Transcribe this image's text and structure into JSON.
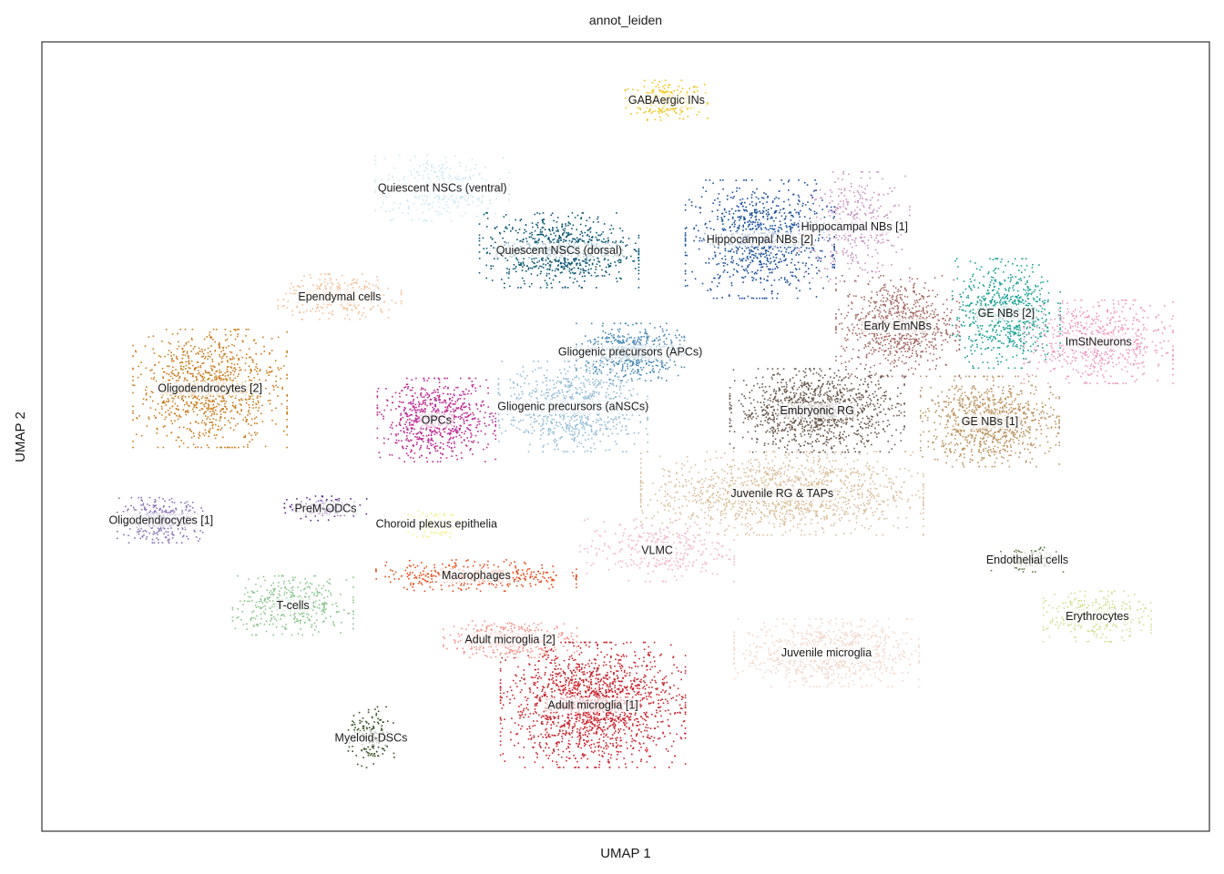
{
  "chart_data": {
    "type": "scatter",
    "title": "annot_leiden",
    "xlabel": "UMAP 1",
    "ylabel": "UMAP 2",
    "xlim": [
      0,
      100
    ],
    "ylim": [
      0,
      100
    ],
    "ticks": "none",
    "grid": false,
    "legend": "labels on data",
    "clusters": [
      {
        "name": "GABAergic INs",
        "color": "#f2c418",
        "center": [
          53.5,
          92.6
        ],
        "spread": [
          3.2,
          2.3
        ],
        "n": 260
      },
      {
        "name": "Hippocampal NBs [1]",
        "color": "#c895c0",
        "center": [
          69.6,
          76.6
        ],
        "spread": [
          4.3,
          6.3
        ],
        "n": 380
      },
      {
        "name": "Hippocampal NBs [2]",
        "color": "#1b4f99",
        "center": [
          61.5,
          75.0
        ],
        "spread": [
          5.8,
          6.8
        ],
        "n": 900
      },
      {
        "name": "Quiescent NSCs (ventral)",
        "color": "#cbe8f4",
        "center": [
          34.3,
          81.5
        ],
        "spread": [
          5.2,
          3.8
        ],
        "n": 380
      },
      {
        "name": "Quiescent NSCs (dorsal)",
        "color": "#0a5673",
        "center": [
          44.3,
          73.6
        ],
        "spread": [
          6.2,
          4.3
        ],
        "n": 800
      },
      {
        "name": "Ependymal cells",
        "color": "#f6bf93",
        "center": [
          25.5,
          67.7
        ],
        "spread": [
          4.8,
          2.6
        ],
        "n": 320
      },
      {
        "name": "Oligodendrocytes [2]",
        "color": "#cb7d1e",
        "center": [
          14.4,
          56.1
        ],
        "spread": [
          6.0,
          6.8
        ],
        "n": 1050
      },
      {
        "name": "Oligodendrocytes [1]",
        "color": "#8872b3",
        "center": [
          10.2,
          39.4
        ],
        "spread": [
          3.4,
          2.6
        ],
        "n": 360
      },
      {
        "name": "PreM-ODCs",
        "color": "#5a2a8c",
        "center": [
          24.3,
          40.9
        ],
        "spread": [
          3.2,
          1.4
        ],
        "n": 150
      },
      {
        "name": "OPCs",
        "color": "#bd2b92",
        "center": [
          33.8,
          52.1
        ],
        "spread": [
          4.6,
          4.8
        ],
        "n": 750
      },
      {
        "name": "Gliogenic precursors (APCs)",
        "color": "#4a89b3",
        "center": [
          50.4,
          60.7
        ],
        "spread": [
          4.2,
          3.3
        ],
        "n": 550
      },
      {
        "name": "Gliogenic precursors (aNSCs)",
        "color": "#95bdd6",
        "center": [
          45.5,
          53.8
        ],
        "spread": [
          5.8,
          5.2
        ],
        "n": 800
      },
      {
        "name": "Early EmNBs",
        "color": "#a46a64",
        "center": [
          73.3,
          64.0
        ],
        "spread": [
          4.8,
          5.8
        ],
        "n": 800
      },
      {
        "name": "GE NBs [2]",
        "color": "#1aa195",
        "center": [
          82.6,
          65.6
        ],
        "spread": [
          4.2,
          6.3
        ],
        "n": 700
      },
      {
        "name": "ImStNeurons",
        "color": "#ef99c1",
        "center": [
          90.5,
          62.0
        ],
        "spread": [
          5.8,
          4.8
        ],
        "n": 700
      },
      {
        "name": "Embryonic RG",
        "color": "#6a594c",
        "center": [
          66.4,
          53.3
        ],
        "spread": [
          6.8,
          4.8
        ],
        "n": 1150
      },
      {
        "name": "GE NBs [1]",
        "color": "#be9563",
        "center": [
          81.2,
          51.9
        ],
        "spread": [
          5.4,
          5.2
        ],
        "n": 900
      },
      {
        "name": "Juvenile RG & TAPs",
        "color": "#dbbf9b",
        "center": [
          63.4,
          42.8
        ],
        "spread": [
          11.0,
          4.8
        ],
        "n": 1400
      },
      {
        "name": "Choroid plexus epithelia",
        "color": "#f4ee84",
        "center": [
          33.8,
          38.9
        ],
        "spread": [
          2.2,
          1.5
        ],
        "n": 130
      },
      {
        "name": "VLMC",
        "color": "#f4b4c6",
        "center": [
          52.7,
          35.6
        ],
        "spread": [
          6.0,
          3.6
        ],
        "n": 320
      },
      {
        "name": "Macrophages",
        "color": "#e64c1c",
        "center": [
          37.2,
          32.4
        ],
        "spread": [
          7.8,
          1.8
        ],
        "n": 380
      },
      {
        "name": "T-cells",
        "color": "#8dc690",
        "center": [
          21.5,
          28.6
        ],
        "spread": [
          4.7,
          3.4
        ],
        "n": 420
      },
      {
        "name": "Endothelial cells",
        "color": "#637a4d",
        "center": [
          84.4,
          34.4
        ],
        "spread": [
          2.8,
          1.4
        ],
        "n": 140
      },
      {
        "name": "Erythrocytes",
        "color": "#d2de91",
        "center": [
          90.4,
          27.2
        ],
        "spread": [
          4.2,
          2.9
        ],
        "n": 340
      },
      {
        "name": "Adult microglia [2]",
        "color": "#f3948a",
        "center": [
          40.1,
          24.3
        ],
        "spread": [
          5.2,
          2.1
        ],
        "n": 450
      },
      {
        "name": "Adult microglia [1]",
        "color": "#c9242d",
        "center": [
          47.2,
          16.0
        ],
        "spread": [
          7.2,
          7.2
        ],
        "n": 1700
      },
      {
        "name": "Juvenile microglia",
        "color": "#f3d6c8",
        "center": [
          67.2,
          22.6
        ],
        "spread": [
          7.2,
          3.9
        ],
        "n": 800
      },
      {
        "name": "Myeloid-DSCs",
        "color": "#354f24",
        "center": [
          28.2,
          11.8
        ],
        "spread": [
          1.8,
          3.6
        ],
        "n": 160
      }
    ]
  }
}
